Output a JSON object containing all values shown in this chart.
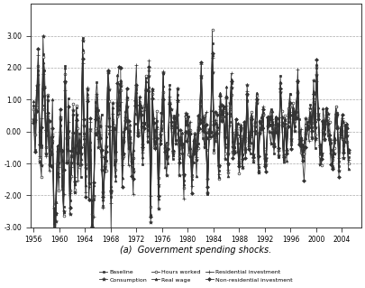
{
  "title": "",
  "subtitle": "(a)  Government spending shocks.",
  "xlabel": "",
  "ylabel": "",
  "xlim": [
    1955.5,
    2007
  ],
  "ylim": [
    -3.0,
    4.0
  ],
  "yticks": [
    -3.0,
    -2.0,
    -1.0,
    0.0,
    1.0,
    2.0,
    3.0
  ],
  "xticks": [
    1956,
    1960,
    1964,
    1968,
    1972,
    1976,
    1980,
    1984,
    1988,
    1992,
    1996,
    2000,
    2004
  ],
  "series_labels": [
    "Baseline",
    "Consumption",
    "Hours worked",
    "Real wage",
    "Residential investment",
    "Non-residential investment"
  ],
  "series_markers": [
    "s",
    "*",
    "o",
    "^",
    "+",
    "D"
  ],
  "series_colors": [
    "#333333",
    "#333333",
    "#333333",
    "#333333",
    "#333333",
    "#333333"
  ],
  "marker_sizes": [
    2,
    3,
    2,
    2,
    3,
    2
  ],
  "line_width": 0.6,
  "background_color": "#ffffff",
  "grid_color": "#aaaaaa",
  "seed": 42,
  "n_points": 200,
  "start_year": 1956,
  "end_year": 2005
}
